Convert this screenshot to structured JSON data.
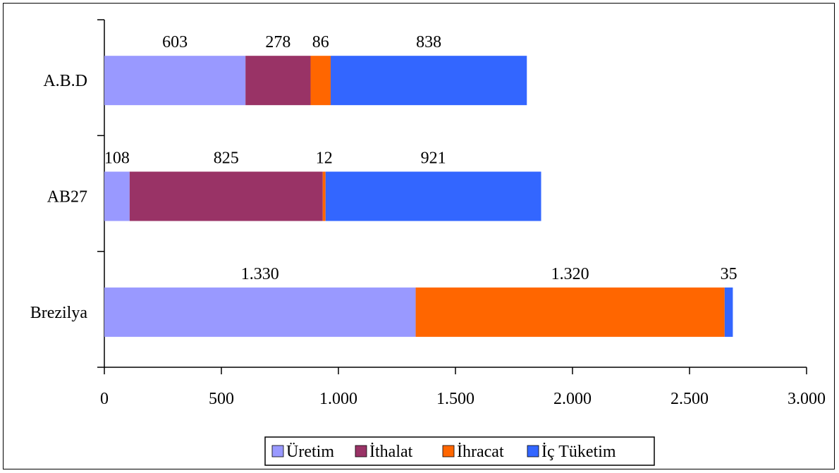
{
  "chart_data": {
    "type": "bar",
    "orientation": "horizontal",
    "stacked": true,
    "categories": [
      "A.B.D",
      "AB27",
      "Brezilya"
    ],
    "series": [
      {
        "name": "Üretim",
        "color": "#9999FF",
        "values": [
          603,
          108,
          1330
        ],
        "labels": [
          "603",
          "108",
          "1.330"
        ]
      },
      {
        "name": "İthalat",
        "color": "#993366",
        "values": [
          278,
          825,
          0
        ],
        "labels": [
          "278",
          "825",
          ""
        ]
      },
      {
        "name": "İhracat",
        "color": "#FF6600",
        "values": [
          86,
          12,
          1320
        ],
        "labels": [
          "86",
          "12",
          "1.320"
        ]
      },
      {
        "name": "İç Tüketim",
        "color": "#3366FF",
        "values": [
          838,
          921,
          35
        ],
        "labels": [
          "838",
          "921",
          "35"
        ]
      }
    ],
    "xlim": [
      0,
      3000
    ],
    "xticks": [
      0,
      500,
      1000,
      1500,
      2000,
      2500,
      3000
    ],
    "xtick_labels": [
      "0",
      "500",
      "1.000",
      "1.500",
      "2.000",
      "2.500",
      "3.000"
    ],
    "grid": false,
    "legend_position": "bottom"
  }
}
